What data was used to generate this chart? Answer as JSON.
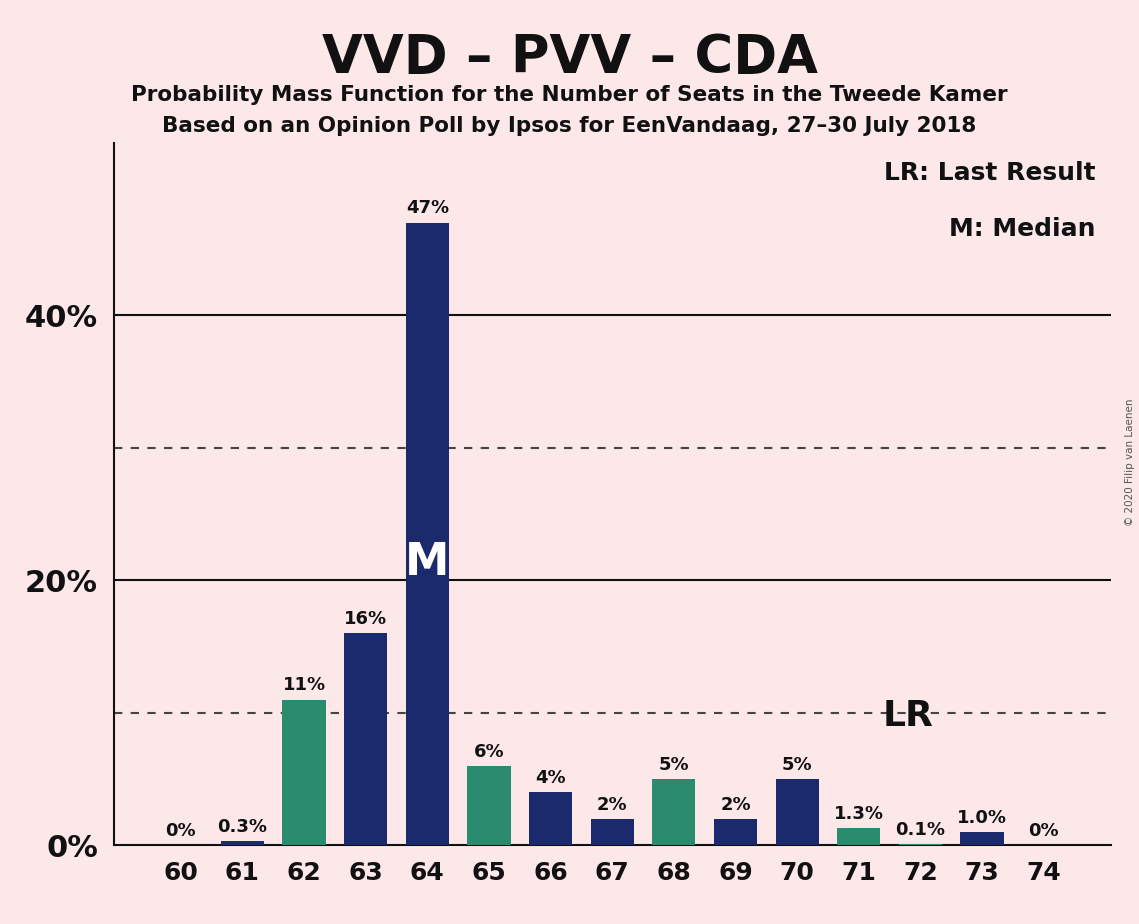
{
  "title": "VVD – PVV – CDA",
  "subtitle1": "Probability Mass Function for the Number of Seats in the Tweede Kamer",
  "subtitle2": "Based on an Opinion Poll by Ipsos for EenVandaag, 27–30 July 2018",
  "copyright": "© 2020 Filip van Laenen",
  "categories": [
    60,
    61,
    62,
    63,
    64,
    65,
    66,
    67,
    68,
    69,
    70,
    71,
    72,
    73,
    74
  ],
  "values": [
    0,
    0.3,
    11,
    16,
    47,
    6,
    4,
    2,
    5,
    2,
    5,
    1.3,
    0.1,
    1.0,
    0
  ],
  "labels": [
    "0%",
    "0.3%",
    "11%",
    "16%",
    "47%",
    "6%",
    "4%",
    "2%",
    "5%",
    "2%",
    "5%",
    "1.3%",
    "0.1%",
    "1.0%",
    "0%"
  ],
  "colors": [
    "#1a2a6c",
    "#1a2a6c",
    "#2a8b6e",
    "#1a2a6c",
    "#1a2a6c",
    "#2a8b6e",
    "#1a2a6c",
    "#1a2a6c",
    "#2a8b6e",
    "#1a2a6c",
    "#1a2a6c",
    "#2a8b6e",
    "#2a8b6e",
    "#1a2a6c",
    "#1a2a6c"
  ],
  "median_bar": 64,
  "lr_bar": 72,
  "background_color": "#fce8e8",
  "dotted_lines": [
    10,
    30
  ],
  "solid_lines": [
    20,
    40
  ],
  "ylim": [
    0,
    53
  ],
  "ytick_shown": [
    0,
    20,
    40
  ],
  "ytick_labels": [
    "0%",
    "20%",
    "40%"
  ],
  "legend_lr": "LR: Last Result",
  "legend_m": "M: Median"
}
